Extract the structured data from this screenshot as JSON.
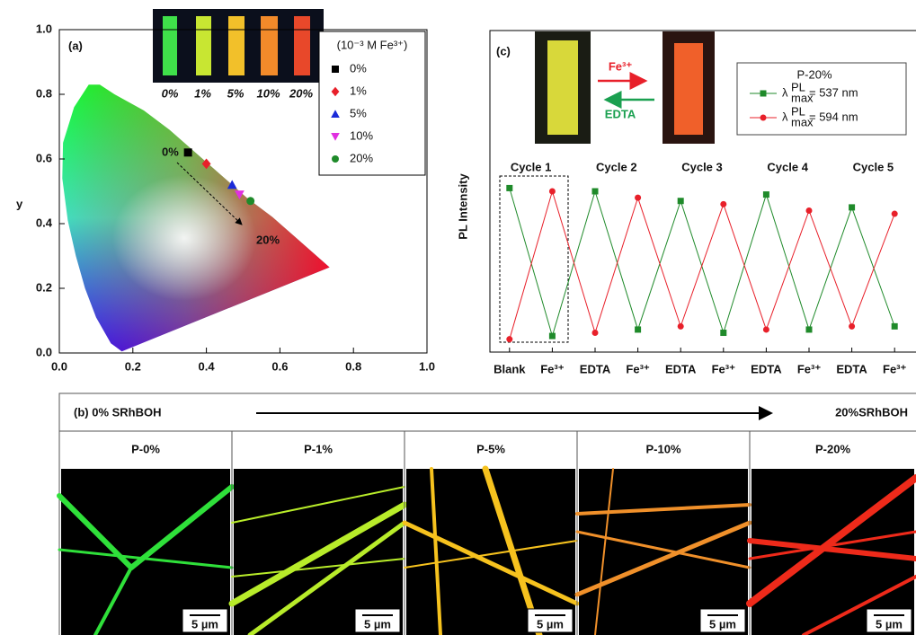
{
  "chart_data": [
    {
      "type": "scatter",
      "panel_label": "(a)",
      "y_label": "y",
      "xlim": [
        0,
        1
      ],
      "ylim": [
        0,
        1
      ],
      "xticks": [
        {
          "value": 0,
          "label": "0.0"
        },
        0.2,
        0.4,
        0.6,
        0.8,
        {
          "value": 1,
          "label": "1.0"
        }
      ],
      "yticks": [
        {
          "value": 0,
          "label": "0.0"
        },
        0.2,
        0.4,
        0.6,
        0.8,
        {
          "value": 1,
          "label": "1.0"
        }
      ],
      "legend_title": "(10⁻³ M Fe³⁺)",
      "legend_position": "upper right",
      "series": [
        {
          "name": "0%",
          "color": "#000000",
          "marker": "square",
          "x": [
            0.35
          ],
          "y": [
            0.62
          ]
        },
        {
          "name": "1%",
          "color": "#e8202a",
          "marker": "diamond",
          "x": [
            0.4
          ],
          "y": [
            0.585
          ]
        },
        {
          "name": "5%",
          "color": "#1a2ad8",
          "marker": "triangle",
          "x": [
            0.47
          ],
          "y": [
            0.52
          ]
        },
        {
          "name": "10%",
          "color": "#e030e0",
          "marker": "triangle-down",
          "x": [
            0.49
          ],
          "y": [
            0.49
          ]
        },
        {
          "name": "20%",
          "color": "#1f8a2a",
          "marker": "circle",
          "x": [
            0.52
          ],
          "y": [
            0.47
          ]
        }
      ],
      "annotations": [
        "0%",
        "20%"
      ],
      "inset_labels": [
        "0%",
        "1%",
        "5%",
        "10%",
        "20%"
      ]
    },
    {
      "type": "line",
      "panel_label": "(c)",
      "y_label": "PL Intensity",
      "categories": [
        "Blank",
        "Fe³⁺",
        "EDTA",
        "Fe³⁺",
        "EDTA",
        "Fe³⁺",
        "EDTA",
        "Fe³⁺",
        "EDTA",
        "Fe³⁺"
      ],
      "ylim": [
        0,
        100
      ],
      "cycles": [
        "Cycle 1",
        "Cycle 2",
        "Cycle 3",
        "Cycle 4",
        "Cycle 5"
      ],
      "arrow_labels": [
        "Fe³⁺",
        "EDTA"
      ],
      "legend_title": "P-20%",
      "series": [
        {
          "name": "λ",
          "name_sup": "PL",
          "name_sub": "max",
          "name_suffix": "= 537 nm",
          "color": "#1f8a2a",
          "marker": "square",
          "values": [
            51,
            5,
            50,
            7,
            47,
            6,
            49,
            7,
            45,
            8
          ]
        },
        {
          "name": "λ",
          "name_sup": "PL",
          "name_sub": "max",
          "name_suffix": "= 594 nm",
          "color": "#e8202a",
          "marker": "circle",
          "values": [
            4,
            50,
            6,
            48,
            8,
            46,
            7,
            44,
            8,
            43
          ]
        }
      ]
    }
  ],
  "panel_b": {
    "start_label": "(b) 0% SRhBOH",
    "end_label": "20%SRhBOH",
    "columns": [
      {
        "title": "P-0%",
        "scale_bar": "5 µm"
      },
      {
        "title": "P-1%",
        "scale_bar": "5 µm"
      },
      {
        "title": "P-5%",
        "scale_bar": "5 µm"
      },
      {
        "title": "P-10%",
        "scale_bar": "5 µm"
      },
      {
        "title": "P-20%",
        "scale_bar": "5 µm"
      }
    ]
  }
}
